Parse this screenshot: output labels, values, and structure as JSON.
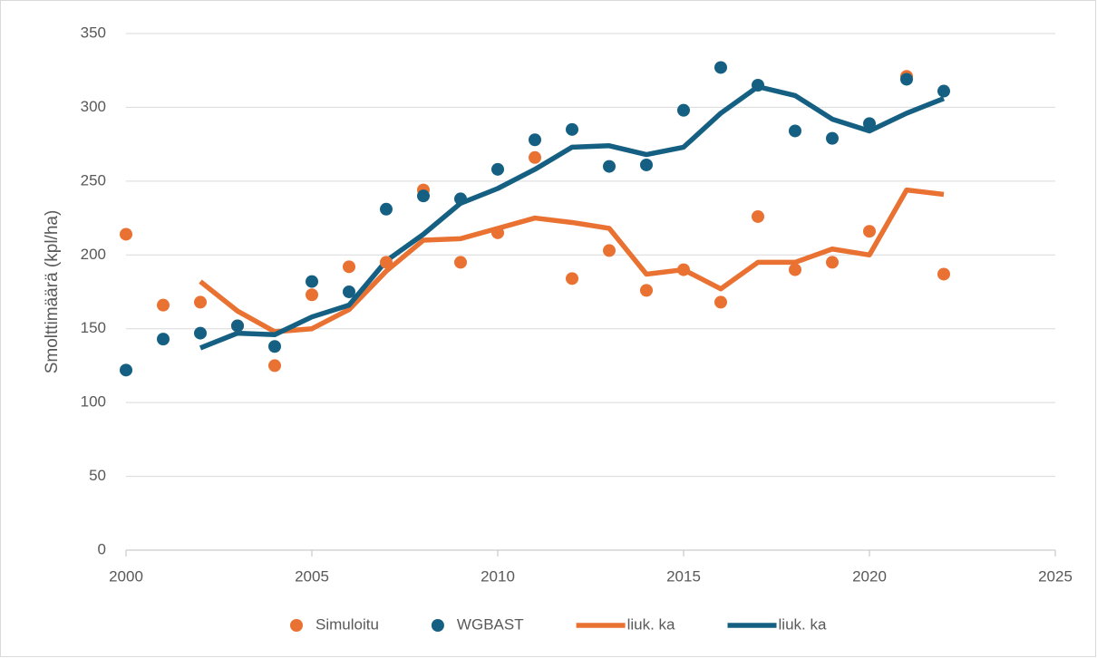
{
  "chart_data": {
    "type": "scatter",
    "y_label": "Smolttimäärä (kpl/ha)",
    "x": [
      2000,
      2001,
      2002,
      2003,
      2004,
      2005,
      2006,
      2007,
      2008,
      2009,
      2010,
      2011,
      2012,
      2013,
      2014,
      2015,
      2016,
      2017,
      2018,
      2019,
      2020,
      2021,
      2022
    ],
    "series": [
      {
        "name": "Simuloitu",
        "type": "scatter",
        "color": "#e97132",
        "values": [
          214,
          166,
          168,
          152,
          125,
          173,
          192,
          195,
          244,
          195,
          215,
          266,
          184,
          203,
          176,
          190,
          168,
          226,
          190,
          195,
          216,
          321,
          187
        ]
      },
      {
        "name": "WGBAST",
        "type": "scatter",
        "color": "#156082",
        "values": [
          122,
          143,
          147,
          152,
          138,
          182,
          175,
          231,
          240,
          238,
          258,
          278,
          285,
          260,
          261,
          298,
          327,
          315,
          284,
          279,
          289,
          319,
          311
        ]
      },
      {
        "name": "liuk. ka",
        "type": "line",
        "color": "#e97132",
        "values": [
          null,
          null,
          182,
          162,
          148,
          150,
          163,
          189,
          210,
          211,
          218,
          225,
          222,
          218,
          187,
          190,
          177,
          195,
          195,
          204,
          200,
          244,
          241
        ]
      },
      {
        "name": "liuk. ka",
        "type": "line",
        "color": "#156082",
        "values": [
          null,
          null,
          137,
          147,
          146,
          158,
          166,
          196,
          214,
          235,
          245,
          258,
          273,
          274,
          268,
          273,
          296,
          314,
          308,
          292,
          284,
          296,
          306
        ]
      }
    ],
    "xlim": [
      2000,
      2025
    ],
    "xticks": [
      2000,
      2005,
      2010,
      2015,
      2020,
      2025
    ],
    "ylim": [
      0,
      350
    ],
    "yticks": [
      0,
      50,
      100,
      150,
      200,
      250,
      300,
      350
    ],
    "grid": true,
    "legend": "bottom"
  }
}
